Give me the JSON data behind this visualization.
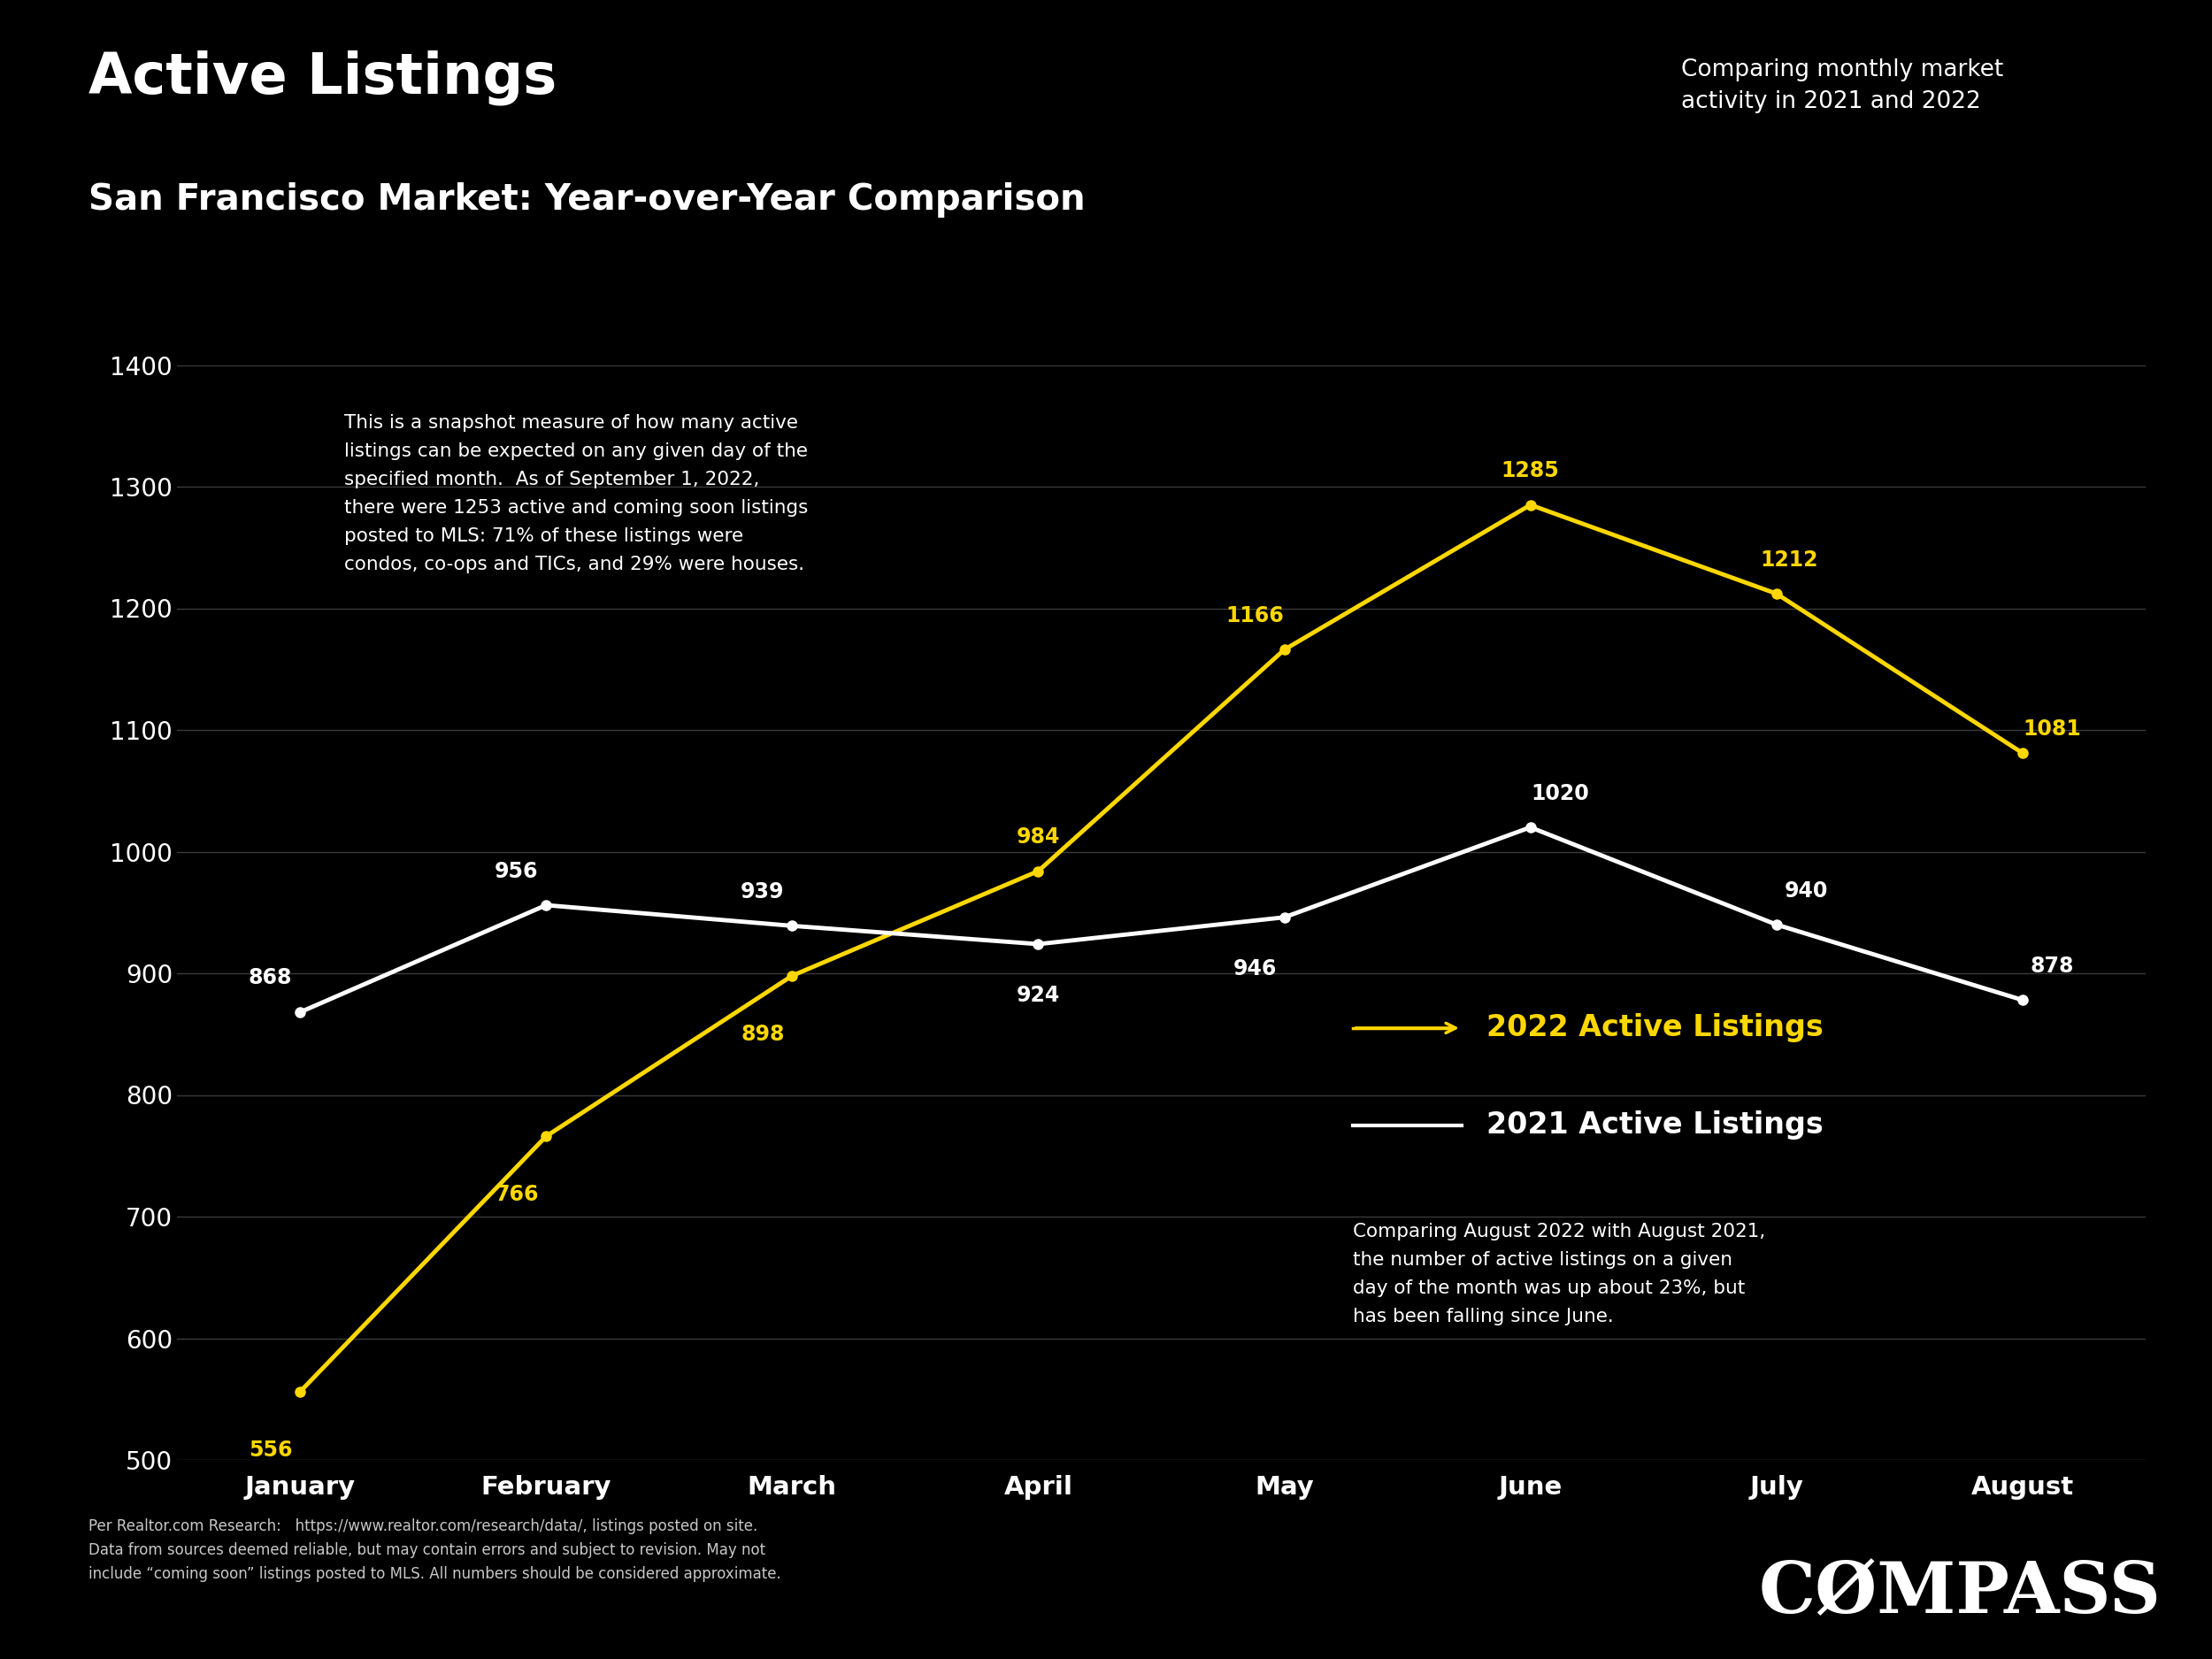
{
  "title": "Active Listings",
  "subtitle": "San Francisco Market: Year-over-Year Comparison",
  "top_right_text": "Comparing monthly market\nactivity in 2021 and 2022",
  "background_color": "#000000",
  "text_color": "#ffffff",
  "months": [
    "January",
    "February",
    "March",
    "April",
    "May",
    "June",
    "July",
    "August"
  ],
  "data_2022": [
    556,
    766,
    898,
    984,
    1166,
    1285,
    1212,
    1081
  ],
  "data_2021": [
    868,
    956,
    939,
    924,
    946,
    1020,
    940,
    878
  ],
  "color_2022": "#FFD700",
  "color_2021": "#ffffff",
  "ylim": [
    500,
    1400
  ],
  "yticks": [
    500,
    600,
    700,
    800,
    900,
    1000,
    1100,
    1200,
    1300,
    1400
  ],
  "legend_2022": "2022 Active Listings",
  "legend_2021": "2021 Active Listings",
  "footer_text": "Per Realtor.com Research:   https://www.realtor.com/research/data/, listings posted on site.\nData from sources deemed reliable, but may contain errors and subject to revision. May not\ninclude “coming soon” listings posted to MLS. All numbers should be considered approximate.",
  "compass_text": "CØMPASS",
  "line_width": 3.5,
  "marker_size": 8
}
